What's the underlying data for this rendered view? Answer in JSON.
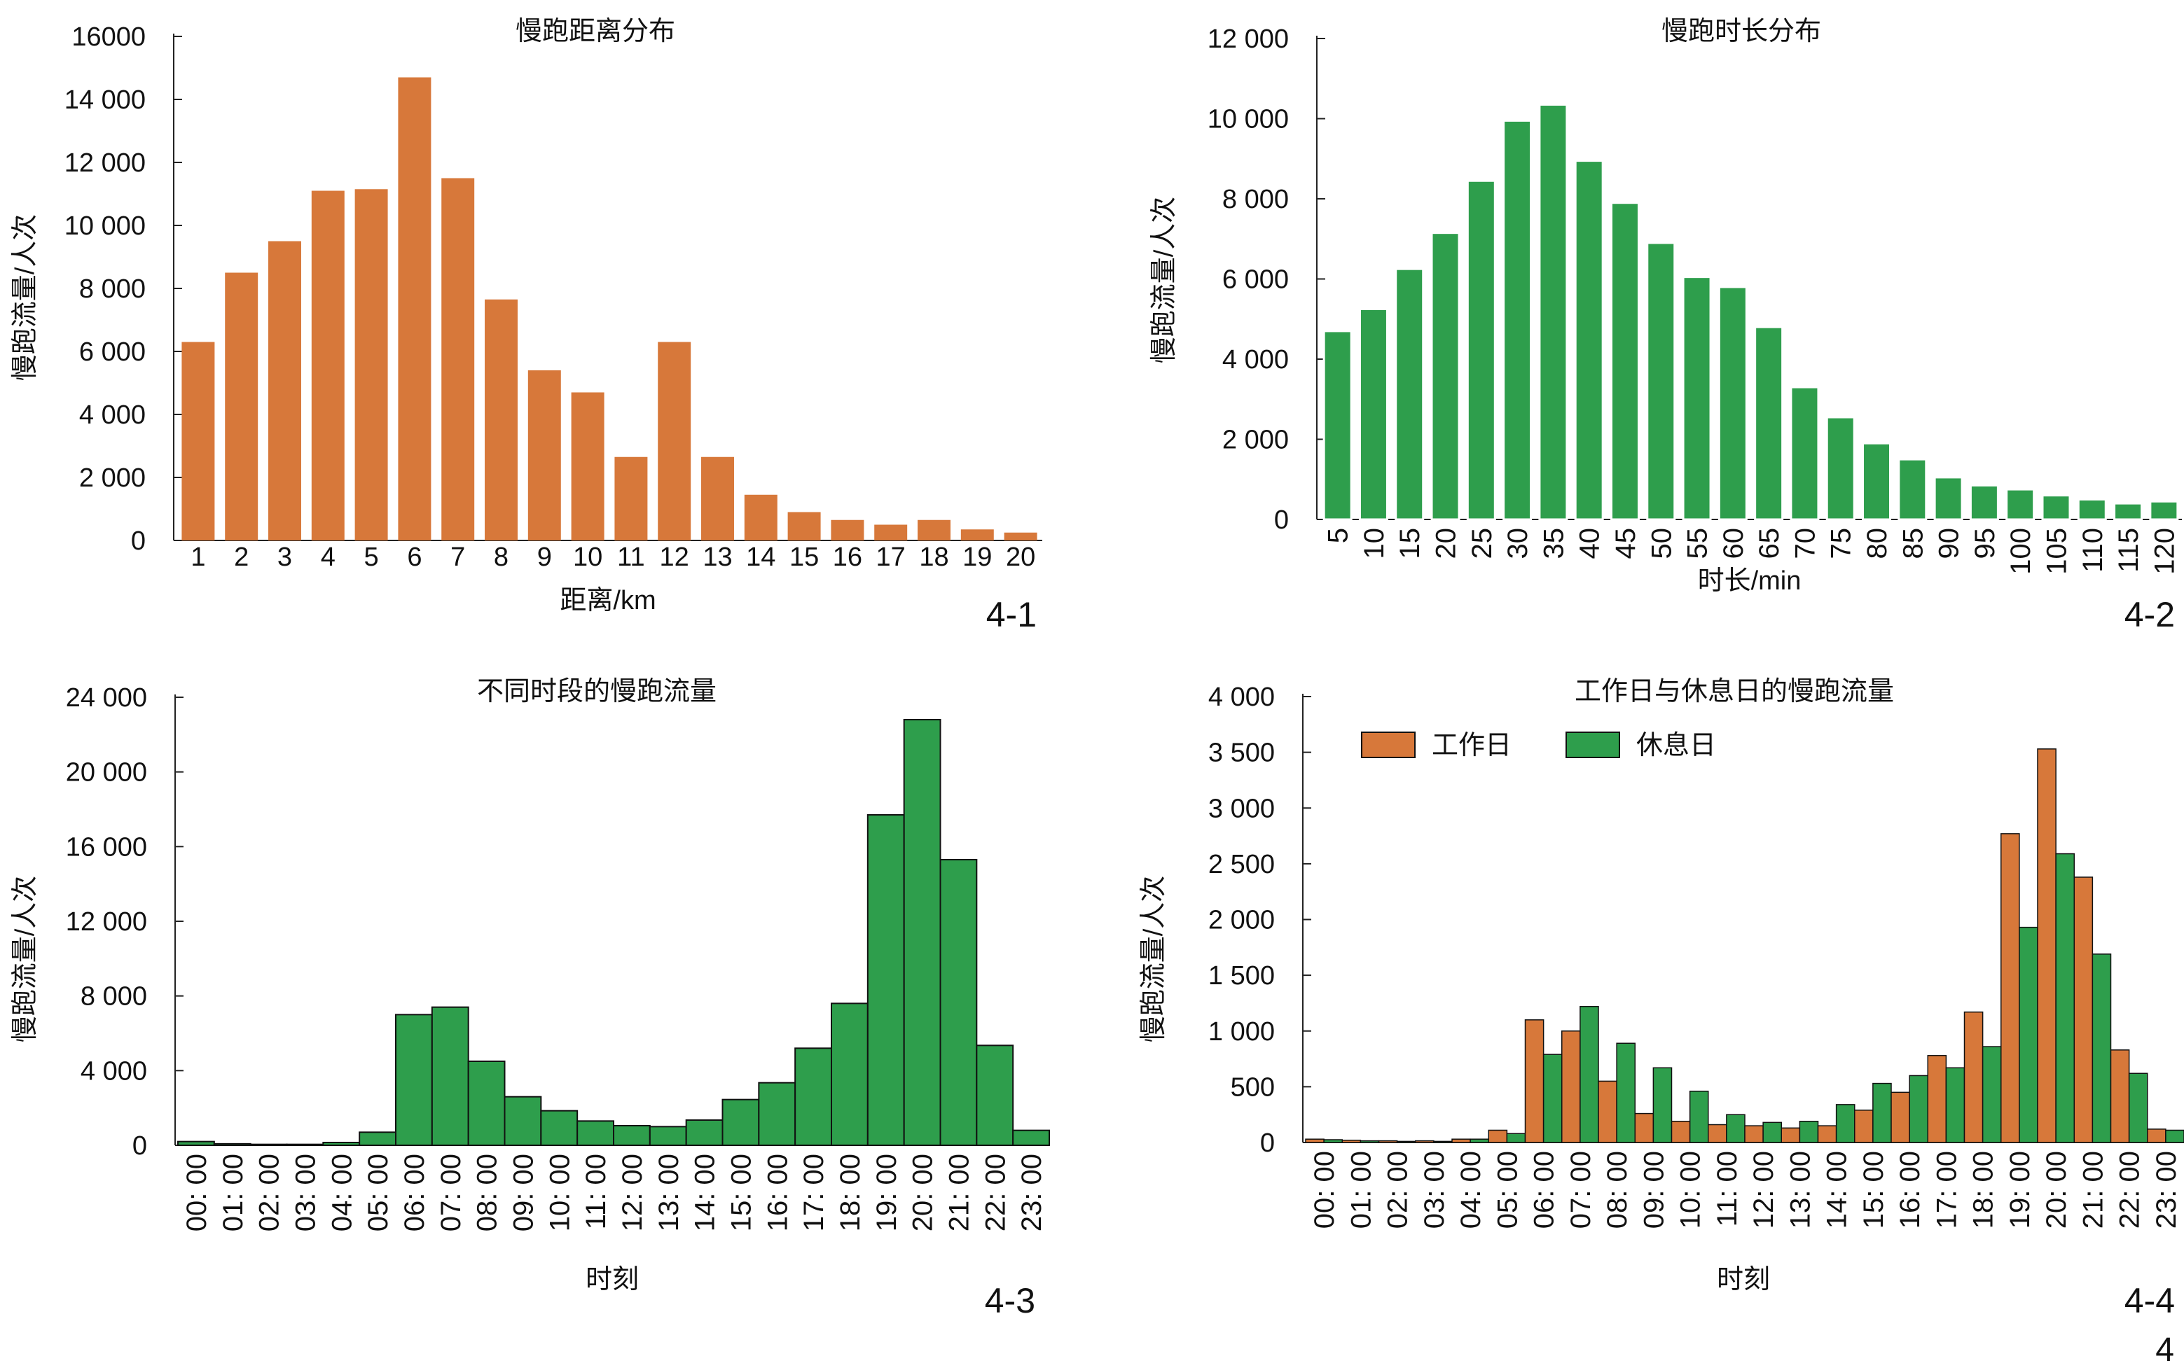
{
  "page_marker": "4",
  "colors": {
    "orange": "#D7783A",
    "green": "#2E9E4C",
    "axis": "#222222"
  },
  "chart_data": [
    {
      "id": "distance",
      "type": "bar",
      "title": "慢跑距离分布",
      "figure_label": "4-1",
      "xlabel": "距离/km",
      "ylabel": "慢跑流量/人次",
      "ylim": [
        0,
        16000
      ],
      "yticks": [
        0,
        2000,
        4000,
        6000,
        8000,
        10000,
        12000,
        14000,
        16000
      ],
      "ytick_labels": [
        "0",
        "2 000",
        "4 000",
        "6 000",
        "8 000",
        "10 000",
        "12 000",
        "14 000",
        "16000"
      ],
      "categories": [
        "1",
        "2",
        "3",
        "4",
        "5",
        "6",
        "7",
        "8",
        "9",
        "10",
        "11",
        "12",
        "13",
        "14",
        "15",
        "16",
        "17",
        "18",
        "19",
        "20"
      ],
      "values": [
        6300,
        8500,
        9500,
        11100,
        11150,
        14700,
        11500,
        7650,
        5400,
        4700,
        2650,
        6300,
        2650,
        1450,
        900,
        650,
        500,
        650,
        350,
        250
      ],
      "fill_color": "#D7783A",
      "edge_color": "none"
    },
    {
      "id": "duration",
      "type": "bar",
      "title": "慢跑时长分布",
      "figure_label": "4-2",
      "xlabel": "时长/min",
      "ylabel": "慢跑流量/人次",
      "ylim": [
        0,
        12000
      ],
      "yticks": [
        0,
        2000,
        4000,
        6000,
        8000,
        10000,
        12000
      ],
      "ytick_labels": [
        "0",
        "2 000",
        "4 000",
        "6 000",
        "8 000",
        "10 000",
        "12 000"
      ],
      "categories": [
        "5",
        "10",
        "15",
        "20",
        "25",
        "30",
        "35",
        "40",
        "45",
        "50",
        "55",
        "60",
        "65",
        "70",
        "75",
        "80",
        "85",
        "90",
        "95",
        "100",
        "105",
        "110",
        "115",
        "120"
      ],
      "values": [
        4700,
        5250,
        6250,
        7150,
        8450,
        9950,
        10350,
        8950,
        7900,
        6900,
        6050,
        5800,
        4800,
        3300,
        2550,
        1900,
        1500,
        1050,
        850,
        750,
        600,
        500,
        400,
        450
      ],
      "fill_color": "#2E9E4C",
      "edge_color": "#ffffff"
    },
    {
      "id": "hourly",
      "type": "bar",
      "title": "不同时段的慢跑流量",
      "figure_label": "4-3",
      "xlabel": "时刻",
      "ylabel": "慢跑流量/人次",
      "ylim": [
        0,
        24000
      ],
      "yticks": [
        0,
        4000,
        8000,
        12000,
        16000,
        20000,
        24000
      ],
      "ytick_labels": [
        "0",
        "4 000",
        "8 000",
        "12 000",
        "16 000",
        "20 000",
        "24 000"
      ],
      "categories": [
        "00: 00",
        "01: 00",
        "02: 00",
        "03: 00",
        "04: 00",
        "05: 00",
        "06: 00",
        "07: 00",
        "08: 00",
        "09: 00",
        "10: 00",
        "11: 00",
        "12: 00",
        "13: 00",
        "14: 00",
        "15: 00",
        "16: 00",
        "17: 00",
        "18: 00",
        "19: 00",
        "20: 00",
        "21: 00",
        "22: 00",
        "23: 00"
      ],
      "values": [
        200,
        80,
        50,
        50,
        150,
        700,
        7000,
        7400,
        4500,
        2600,
        1850,
        1300,
        1050,
        1000,
        1350,
        2450,
        3350,
        5200,
        7600,
        17700,
        22800,
        15300,
        5350,
        800
      ],
      "fill_color": "#2E9E4C",
      "edge_color": "#111111"
    },
    {
      "id": "weekday_vs_weekend",
      "type": "bar",
      "title": "工作日与休息日的慢跑流量",
      "figure_label": "4-4",
      "xlabel": "时刻",
      "ylabel": "慢跑流量/人次",
      "ylim": [
        0,
        4000
      ],
      "yticks": [
        0,
        500,
        1000,
        1500,
        2000,
        2500,
        3000,
        3500,
        4000
      ],
      "ytick_labels": [
        "0",
        "500",
        "1 000",
        "1 500",
        "2 000",
        "2 500",
        "3 000",
        "3 500",
        "4 000"
      ],
      "categories": [
        "00: 00",
        "01: 00",
        "02: 00",
        "03: 00",
        "04: 00",
        "05: 00",
        "06: 00",
        "07: 00",
        "08: 00",
        "09: 00",
        "10: 00",
        "11: 00",
        "12: 00",
        "13: 00",
        "14: 00",
        "15: 00",
        "16: 00",
        "17: 00",
        "18: 00",
        "19: 00",
        "20: 00",
        "21: 00",
        "22: 00",
        "23: 00"
      ],
      "legend_position": "top-left",
      "series": [
        {
          "name": "工作日",
          "color": "#D7783A",
          "values": [
            30,
            20,
            15,
            15,
            30,
            110,
            1100,
            1000,
            550,
            260,
            190,
            160,
            150,
            130,
            150,
            290,
            450,
            780,
            1170,
            2770,
            3530,
            2380,
            830,
            120
          ]
        },
        {
          "name": "休息日",
          "color": "#2E9E4C",
          "values": [
            25,
            15,
            10,
            10,
            30,
            80,
            790,
            1220,
            890,
            670,
            460,
            250,
            180,
            190,
            340,
            530,
            600,
            670,
            860,
            1930,
            2590,
            1690,
            620,
            110
          ]
        }
      ]
    }
  ]
}
